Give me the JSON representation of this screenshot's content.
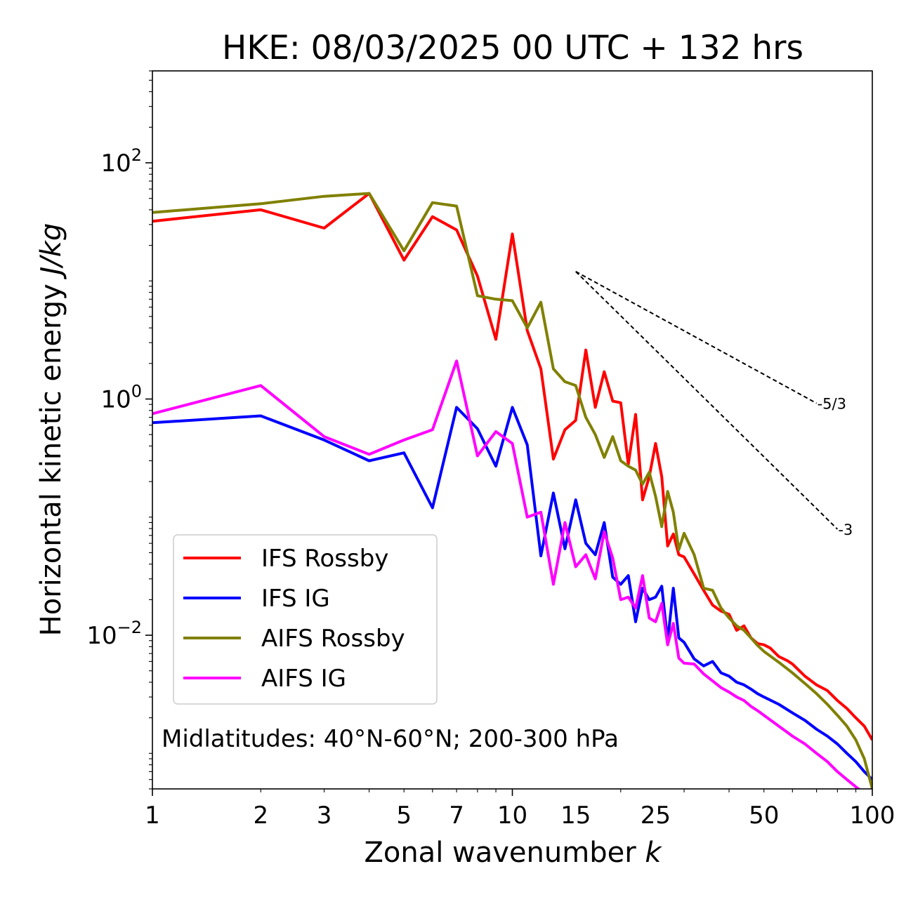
{
  "chart_data": {
    "type": "line",
    "title": "HKE: 08/03/2025 00 UTC + 132 hrs",
    "xlabel": "Zonal wavenumber ",
    "xlabel_italic": "k",
    "ylabel": "Horizontal kinetic energy ",
    "ylabel_italic": "J/kg",
    "xscale": "log",
    "yscale": "log",
    "xlim": [
      1,
      100
    ],
    "ylim": [
      0.0005,
      600
    ],
    "xticks": [
      {
        "value": 1,
        "label": "1"
      },
      {
        "value": 2,
        "label": "2"
      },
      {
        "value": 3,
        "label": "3"
      },
      {
        "value": 5,
        "label": "5"
      },
      {
        "value": 7,
        "label": "7"
      },
      {
        "value": 10,
        "label": "10"
      },
      {
        "value": 15,
        "label": "15"
      },
      {
        "value": 25,
        "label": "25"
      },
      {
        "value": 50,
        "label": "50"
      },
      {
        "value": 100,
        "label": "100"
      }
    ],
    "yticks": [
      {
        "value": 100,
        "base": "10",
        "exp": "2"
      },
      {
        "value": 1,
        "base": "10",
        "exp": "0"
      },
      {
        "value": 0.01,
        "base": "10",
        "exp": "−2"
      }
    ],
    "legend": {
      "position": "lower-left",
      "entries": [
        {
          "name": "IFS Rossby",
          "color": "#ff0000"
        },
        {
          "name": "IFS IG",
          "color": "#0000ff"
        },
        {
          "name": "AIFS Rossby",
          "color": "#808000"
        },
        {
          "name": "AIFS IG",
          "color": "#ff00ff"
        }
      ]
    },
    "annotation": "Midlatitudes: 40°N-60°N; 200-300 hPa",
    "reference_lines": [
      {
        "label": "-5/3",
        "slope": -1.6667,
        "x": [
          15,
          70
        ],
        "y0": 12
      },
      {
        "label": "-3",
        "slope": -3,
        "x": [
          15,
          80
        ],
        "y0": 12
      }
    ],
    "series": [
      {
        "name": "IFS Rossby",
        "color": "#ff0000",
        "x": [
          1,
          2,
          3,
          4,
          5,
          6,
          7,
          8,
          9,
          10,
          11,
          12,
          13,
          14,
          15,
          16,
          17,
          18,
          19,
          20,
          21,
          22,
          23,
          24,
          25,
          26,
          27,
          28,
          29,
          30,
          32,
          34,
          36,
          38,
          40,
          42,
          44,
          46,
          48,
          50,
          52,
          55,
          58,
          60,
          65,
          70,
          75,
          80,
          85,
          90,
          95,
          100
        ],
        "y": [
          32,
          40,
          28,
          55,
          15,
          35,
          27,
          11,
          3.2,
          25,
          3.8,
          1.8,
          0.31,
          0.55,
          0.66,
          2.6,
          0.85,
          1.7,
          0.96,
          0.93,
          0.28,
          0.74,
          0.14,
          0.22,
          0.42,
          0.22,
          0.057,
          0.072,
          0.048,
          0.046,
          0.033,
          0.024,
          0.018,
          0.016,
          0.015,
          0.011,
          0.012,
          0.0095,
          0.0085,
          0.0083,
          0.0078,
          0.0066,
          0.0061,
          0.0057,
          0.0045,
          0.0038,
          0.0034,
          0.0028,
          0.0024,
          0.002,
          0.0017,
          0.0013
        ]
      },
      {
        "name": "IFS IG",
        "color": "#0000ff",
        "x": [
          1,
          2,
          3,
          4,
          5,
          6,
          7,
          8,
          9,
          10,
          11,
          12,
          13,
          14,
          15,
          16,
          17,
          18,
          19,
          20,
          21,
          22,
          23,
          24,
          25,
          26,
          27,
          28,
          29,
          30,
          32,
          34,
          36,
          38,
          40,
          42,
          44,
          46,
          48,
          50,
          55,
          60,
          65,
          70,
          75,
          80,
          85,
          90,
          95,
          100
        ],
        "y": [
          0.63,
          0.72,
          0.45,
          0.3,
          0.35,
          0.12,
          0.85,
          0.56,
          0.27,
          0.85,
          0.41,
          0.047,
          0.16,
          0.054,
          0.14,
          0.06,
          0.048,
          0.09,
          0.031,
          0.027,
          0.032,
          0.013,
          0.025,
          0.02,
          0.021,
          0.026,
          0.0089,
          0.025,
          0.0095,
          0.0087,
          0.0063,
          0.0055,
          0.006,
          0.0048,
          0.0045,
          0.004,
          0.0038,
          0.0035,
          0.0032,
          0.003,
          0.0026,
          0.0022,
          0.0019,
          0.0016,
          0.0014,
          0.0012,
          0.001,
          0.00085,
          0.0007,
          0.0006
        ]
      },
      {
        "name": "AIFS Rossby",
        "color": "#808000",
        "x": [
          1,
          2,
          3,
          4,
          5,
          6,
          7,
          8,
          9,
          10,
          11,
          12,
          13,
          14,
          15,
          16,
          17,
          18,
          19,
          20,
          21,
          22,
          23,
          24,
          25,
          26,
          27,
          28,
          29,
          30,
          32,
          34,
          36,
          38,
          40,
          42,
          44,
          46,
          48,
          50,
          55,
          60,
          65,
          70,
          75,
          80,
          85,
          90,
          95,
          100
        ],
        "y": [
          38,
          45,
          52,
          55,
          18,
          46,
          43,
          7.5,
          7,
          6.8,
          4,
          6.6,
          1.8,
          1.4,
          1.3,
          0.7,
          0.5,
          0.32,
          0.48,
          0.3,
          0.27,
          0.25,
          0.19,
          0.24,
          0.15,
          0.083,
          0.165,
          0.11,
          0.053,
          0.073,
          0.048,
          0.025,
          0.024,
          0.017,
          0.014,
          0.012,
          0.011,
          0.0095,
          0.0082,
          0.0073,
          0.0059,
          0.0048,
          0.0039,
          0.0032,
          0.0026,
          0.0021,
          0.0017,
          0.0013,
          0.0009,
          0.0005
        ]
      },
      {
        "name": "AIFS IG",
        "color": "#ff00ff",
        "x": [
          1,
          2,
          3,
          4,
          5,
          6,
          7,
          8,
          9,
          10,
          11,
          12,
          13,
          14,
          15,
          16,
          17,
          18,
          19,
          20,
          21,
          22,
          23,
          24,
          25,
          26,
          27,
          28,
          29,
          30,
          32,
          34,
          36,
          38,
          40,
          42,
          44,
          46,
          48,
          50,
          55,
          60,
          65,
          70,
          75,
          80,
          85,
          90,
          95,
          100
        ],
        "y": [
          0.75,
          1.3,
          0.48,
          0.34,
          0.45,
          0.55,
          2.1,
          0.33,
          0.53,
          0.42,
          0.1,
          0.11,
          0.027,
          0.09,
          0.038,
          0.048,
          0.03,
          0.075,
          0.045,
          0.02,
          0.021,
          0.017,
          0.032,
          0.014,
          0.013,
          0.0186,
          0.0083,
          0.0126,
          0.0064,
          0.0058,
          0.0057,
          0.0047,
          0.0041,
          0.0036,
          0.0033,
          0.003,
          0.0028,
          0.0025,
          0.0023,
          0.0021,
          0.0017,
          0.0014,
          0.0012,
          0.001,
          0.00085,
          0.0007,
          0.0006,
          0.00052,
          0.00046,
          0.0004
        ]
      }
    ]
  }
}
